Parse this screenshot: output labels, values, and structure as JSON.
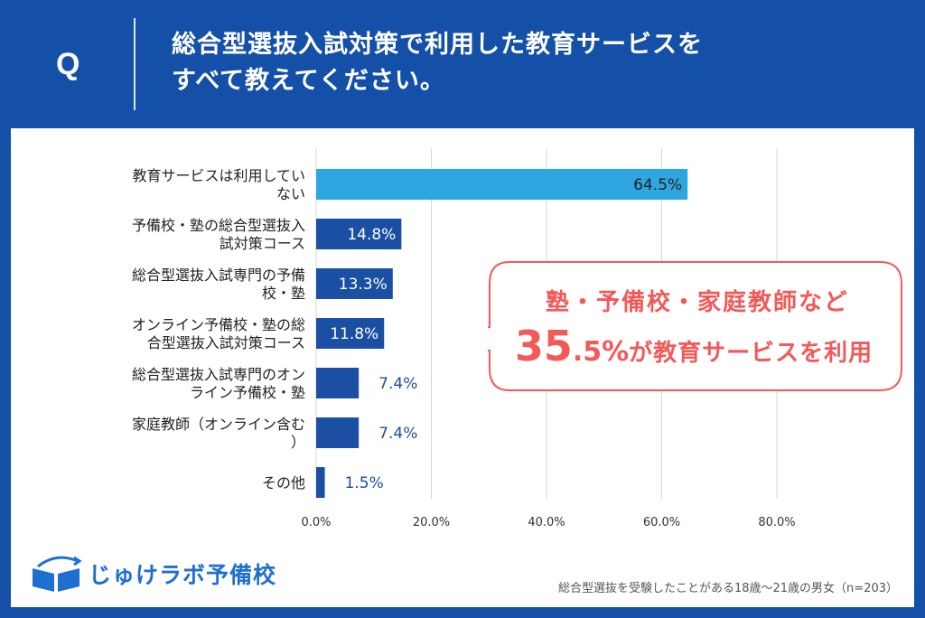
{
  "question": {
    "mark": "Q",
    "line1": "総合型選抜入試対策で利用した教育サービスを",
    "line2": "すべて教えてください。"
  },
  "chart_data": {
    "type": "bar",
    "orientation": "horizontal",
    "categories": [
      [
        "教育サービスは利用してい",
        "ない"
      ],
      [
        "予備校・塾の総合型選抜入",
        "試対策コース"
      ],
      [
        "総合型選抜入試専門の予備",
        "校・塾"
      ],
      [
        "オンライン予備校・塾の総",
        "合型選抜入試対策コース"
      ],
      [
        "総合型選抜入試専門のオン",
        "ライン予備校・塾"
      ],
      [
        "家庭教師（オンライン含む",
        "）"
      ],
      [
        "その他"
      ]
    ],
    "values": [
      64.5,
      14.8,
      13.3,
      11.8,
      7.4,
      7.4,
      1.5
    ],
    "value_labels": [
      "64.5%",
      "14.8%",
      "13.3%",
      "11.8%",
      "7.4%",
      "7.4%",
      "1.5%"
    ],
    "xlim": [
      0,
      80
    ],
    "xticks": [
      0,
      20,
      40,
      60,
      80
    ],
    "xtick_labels": [
      "0.0%",
      "20.0%",
      "40.0%",
      "60.0%",
      "80.0%"
    ],
    "grid": true,
    "colors": {
      "highlight": "#2ea7e0",
      "default": "#1a4fa3",
      "label_inside": "#ffffff",
      "label_outside": "#1a4fa3"
    }
  },
  "callout": {
    "line1": "塾・予備校・家庭教師など",
    "big": "35",
    "mid": ".5%",
    "rest": "が教育サービスを利用"
  },
  "logo": {
    "text": "じゅけラボ予備校"
  },
  "footnote": "総合型選抜を受験したことがある18歳～21歳の男女（n=203）",
  "colors": {
    "background": "#1550a8",
    "accent": "#f25a5a",
    "logo": "#1f6fd0"
  }
}
